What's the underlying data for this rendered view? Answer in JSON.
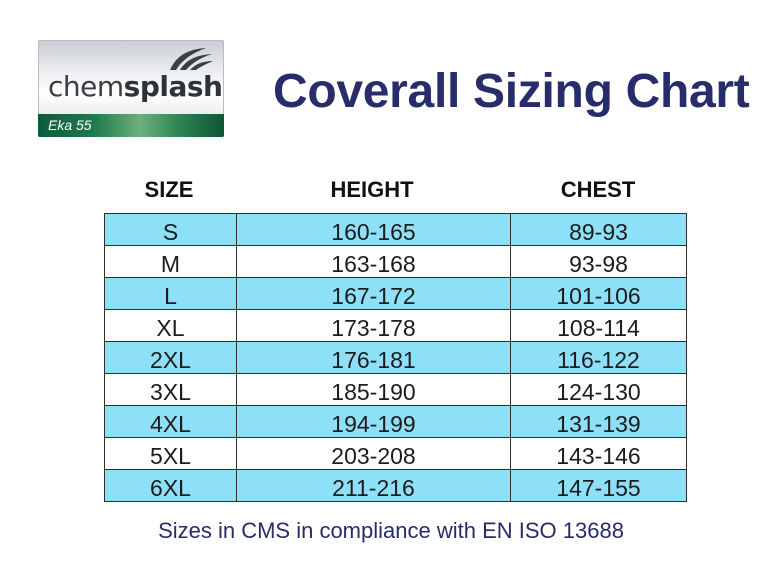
{
  "logo": {
    "brand_light": "chem",
    "brand_bold": "splash",
    "model": "Eka 55"
  },
  "title": "Coverall Sizing Chart",
  "table": {
    "headers": {
      "size": "SIZE",
      "height": "HEIGHT",
      "chest": "CHEST"
    },
    "rows": [
      {
        "size": "S",
        "height": "160-165",
        "chest": "89-93"
      },
      {
        "size": "M",
        "height": "163-168",
        "chest": "93-98"
      },
      {
        "size": "L",
        "height": "167-172",
        "chest": "101-106"
      },
      {
        "size": "XL",
        "height": "173-178",
        "chest": "108-114"
      },
      {
        "size": "2XL",
        "height": "176-181",
        "chest": "116-122"
      },
      {
        "size": "3XL",
        "height": "185-190",
        "chest": "124-130"
      },
      {
        "size": "4XL",
        "height": "194-199",
        "chest": "131-139"
      },
      {
        "size": "5XL",
        "height": "203-208",
        "chest": "143-146"
      },
      {
        "size": "6XL",
        "height": "211-216",
        "chest": "147-155"
      }
    ]
  },
  "footnote": "Sizes in CMS in compliance with EN ISO 13688",
  "colors": {
    "title": "#262d6a",
    "row_shade": "#8edff8",
    "row_plain": "#ffffff",
    "logo_band": "#1f7a4e"
  }
}
